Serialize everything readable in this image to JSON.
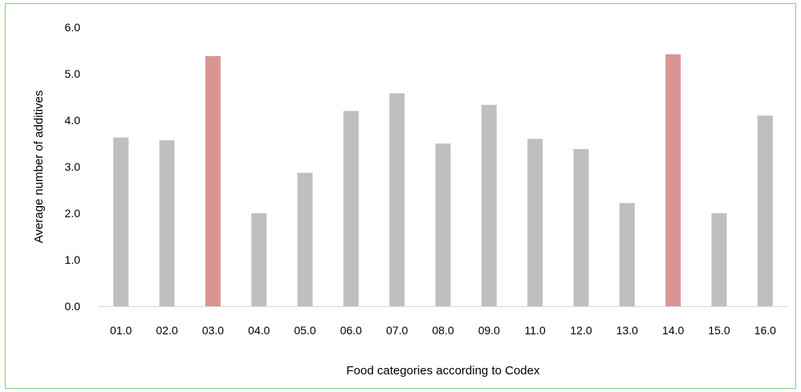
{
  "chart_data": {
    "type": "bar",
    "title": "",
    "xlabel": "Food categories according to Codex",
    "ylabel": "Average number of additives",
    "categories": [
      "01.0",
      "02.0",
      "03.0",
      "04.0",
      "05.0",
      "06.0",
      "07.0",
      "08.0",
      "09.0",
      "11.0",
      "12.0",
      "13.0",
      "14.0",
      "15.0",
      "16.0"
    ],
    "values": [
      3.63,
      3.57,
      5.38,
      2.0,
      2.87,
      4.2,
      4.58,
      3.5,
      4.33,
      3.6,
      3.38,
      2.22,
      5.42,
      2.0,
      4.1
    ],
    "highlighted": [
      "03.0",
      "14.0"
    ],
    "ylim": [
      0,
      6
    ],
    "yticks": [
      "0.0",
      "1.0",
      "2.0",
      "3.0",
      "4.0",
      "5.0",
      "6.0"
    ],
    "grid": false,
    "legend": "none",
    "colors": {
      "bar": "#bfbfbf",
      "highlight": "#d99594",
      "frame": "#7fcf85",
      "axis": "#d9d9d9"
    }
  }
}
